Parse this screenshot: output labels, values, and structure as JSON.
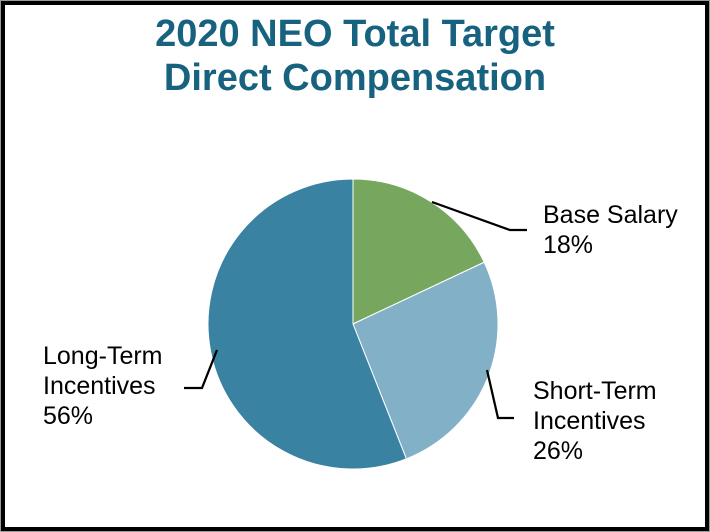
{
  "title": {
    "line1": "2020 NEO Total Target",
    "line2": "Direct Compensation",
    "color": "#17627f"
  },
  "chart_data": {
    "type": "pie",
    "title": "2020 NEO Total Target Direct Compensation",
    "slices": [
      {
        "label": "Base Salary",
        "value": 18,
        "color": "#77a75e"
      },
      {
        "label": "Short-Term Incentives",
        "value": 26,
        "color": "#81b0c7"
      },
      {
        "label": "Long-Term Incentives",
        "value": 56,
        "color": "#3a82a2"
      }
    ],
    "unit": "percent",
    "start_angle": "12-o'clock",
    "direction": "clockwise",
    "legend": "callout-labels",
    "separator_color": "#ffffff",
    "leader_line_color": "#000000"
  },
  "callouts": {
    "base_salary": {
      "lines": [
        "Base Salary",
        "18%"
      ]
    },
    "short_term": {
      "lines": [
        "Short-Term",
        "Incentives",
        "26%"
      ]
    },
    "long_term": {
      "lines": [
        "Long-Term",
        "Incentives",
        "56%"
      ]
    }
  }
}
